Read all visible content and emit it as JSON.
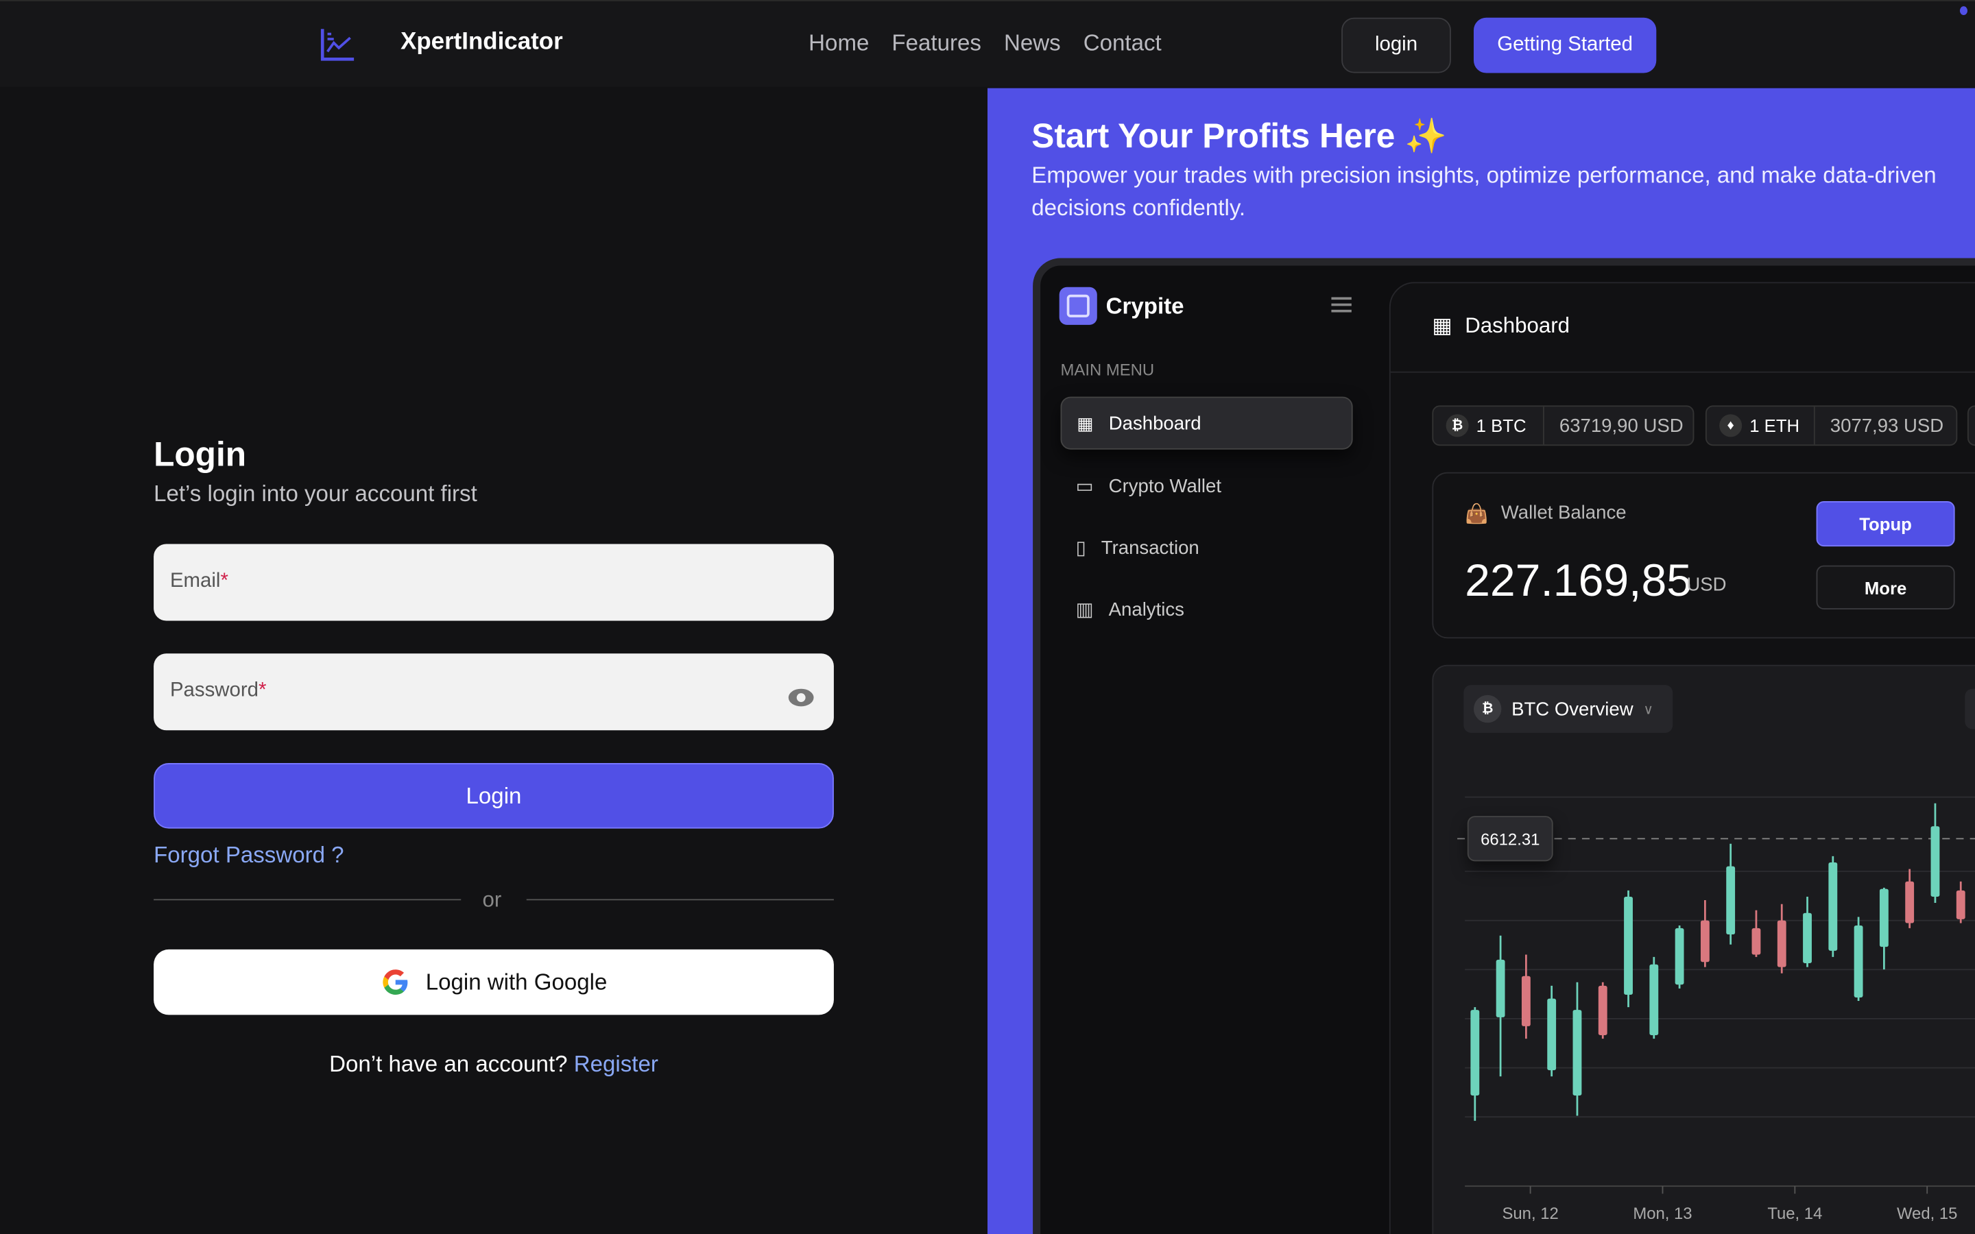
{
  "header": {
    "brand": "XpertIndicator",
    "nav": [
      "Home",
      "Features",
      "News",
      "Contact"
    ],
    "login": "login",
    "getting_started": "Getting Started",
    "accent": "#5150e6"
  },
  "login": {
    "title": "Login",
    "subtitle": "Let’s login into your account first",
    "email_label": "Email",
    "password_label": "Password",
    "required_mark": "*",
    "submit": "Login",
    "forgot": "Forgot Password ?",
    "or": "or",
    "google": "Login with Google",
    "no_account": "Don’t have an account?",
    "register": "Register"
  },
  "promo": {
    "title": "Start Your Profits Here ✨",
    "subtitle": "Empower your trades with precision insights, optimize performance, and make data-driven decisions confidently."
  },
  "dashboard": {
    "app_name": "Crypite",
    "menu_heading": "MAIN MENU",
    "menu": [
      {
        "label": "Dashboard",
        "icon": "grid-icon",
        "active": true
      },
      {
        "label": "Crypto Wallet",
        "icon": "wallet-icon"
      },
      {
        "label": "Transaction",
        "icon": "receipt-icon"
      },
      {
        "label": "Analytics",
        "icon": "analytics-icon"
      }
    ],
    "page_title": "Dashboard",
    "tickers": [
      {
        "coin": "1 BTC",
        "value": "63719,90 USD",
        "symbol": "₿"
      },
      {
        "coin": "1 ETH",
        "value": "3077,93 USD",
        "symbol": "♦"
      }
    ],
    "wallet": {
      "label": "Wallet Balance",
      "amount": "227.169,85",
      "currency": "USD",
      "topup": "Topup",
      "more": "More"
    },
    "chart": {
      "selector": "BTC Overview",
      "price_label": "6612.31",
      "x_labels": [
        "Sun, 12",
        "Mon, 13",
        "Tue, 14",
        "Wed, 15"
      ],
      "up_color": "#6dd3bb",
      "down_color": "#d9787f"
    }
  },
  "chart_data": {
    "type": "candlestick",
    "x_ticks": [
      "Sun, 12",
      "Mon, 13",
      "Tue, 14",
      "Wed, 15"
    ],
    "marker_value": "6612.31",
    "scale": "relative 0-100, no y-axis labels shown",
    "reference_level": 89.3,
    "candles": [
      [
        23.3,
        46.0,
        16.8,
        45.3
      ],
      [
        43.4,
        64.4,
        28.2,
        58.2
      ],
      [
        54.0,
        59.5,
        37.9,
        41.1
      ],
      [
        29.8,
        51.5,
        28.2,
        48.2
      ],
      [
        23.3,
        52.4,
        18.1,
        45.3
      ],
      [
        51.5,
        52.4,
        37.9,
        38.8
      ],
      [
        49.2,
        76.0,
        46.0,
        74.4
      ],
      [
        38.8,
        58.9,
        37.9,
        57.0
      ],
      [
        51.8,
        67.0,
        50.8,
        66.3
      ],
      [
        68.3,
        73.5,
        56.3,
        57.6
      ],
      [
        64.7,
        88.0,
        62.1,
        82.2
      ],
      [
        66.3,
        70.9,
        58.9,
        59.5
      ],
      [
        68.3,
        72.5,
        54.7,
        56.3
      ],
      [
        57.3,
        74.4,
        56.3,
        70.2
      ],
      [
        60.5,
        84.8,
        58.9,
        83.2
      ],
      [
        48.5,
        69.2,
        47.6,
        67.0
      ],
      [
        61.5,
        76.7,
        55.7,
        76.4
      ],
      [
        78.3,
        81.5,
        66.3,
        67.6
      ],
      [
        74.4,
        98.4,
        72.8,
        92.5
      ],
      [
        76.0,
        78.3,
        67.6,
        68.6
      ]
    ],
    "candle_format": [
      "open",
      "high",
      "low",
      "close"
    ]
  }
}
